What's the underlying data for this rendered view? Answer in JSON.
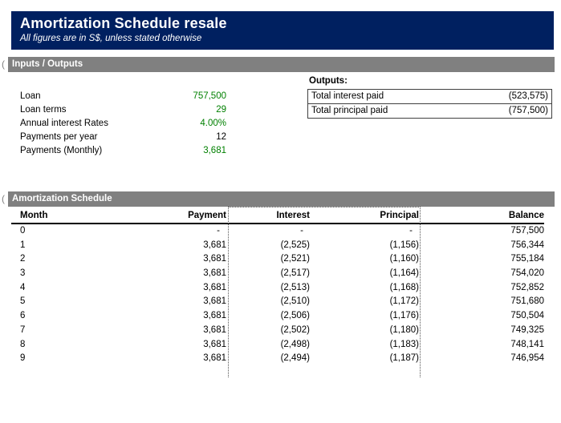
{
  "colors": {
    "navy": "#002060",
    "gray": "#808080",
    "green": "#008000"
  },
  "group_indicator": "(",
  "header": {
    "title": "Amortization Schedule resale",
    "subtitle": "All figures are in S$, unless stated otherwise"
  },
  "sections": {
    "inputs_outputs": {
      "label": "Inputs / Outputs"
    },
    "schedule": {
      "label": "Amortization Schedule"
    }
  },
  "inputs": [
    {
      "label": "Loan",
      "value": "757,500",
      "green": true
    },
    {
      "label": "Loan terms",
      "value": "29",
      "green": true
    },
    {
      "label": "Annual interest Rates",
      "value": "4.00%",
      "green": true
    },
    {
      "label": "Payments per year",
      "value": "12",
      "green": false
    },
    {
      "label": "Payments (Monthly)",
      "value": "3,681",
      "green": true
    }
  ],
  "outputs": {
    "label": "Outputs:",
    "rows": [
      {
        "label": "Total interest paid",
        "value": "(523,575)"
      },
      {
        "label": "Total principal paid",
        "value": "(757,500)"
      }
    ]
  },
  "schedule_table": {
    "columns": [
      "Month",
      "Payment",
      "Interest",
      "Principal",
      "Balance"
    ],
    "rows": [
      [
        "0",
        "-",
        "-",
        "-",
        "757,500"
      ],
      [
        "1",
        "3,681",
        "(2,525)",
        "(1,156)",
        "756,344"
      ],
      [
        "2",
        "3,681",
        "(2,521)",
        "(1,160)",
        "755,184"
      ],
      [
        "3",
        "3,681",
        "(2,517)",
        "(1,164)",
        "754,020"
      ],
      [
        "4",
        "3,681",
        "(2,513)",
        "(1,168)",
        "752,852"
      ],
      [
        "5",
        "3,681",
        "(2,510)",
        "(1,172)",
        "751,680"
      ],
      [
        "6",
        "3,681",
        "(2,506)",
        "(1,176)",
        "750,504"
      ],
      [
        "7",
        "3,681",
        "(2,502)",
        "(1,180)",
        "749,325"
      ],
      [
        "8",
        "3,681",
        "(2,498)",
        "(1,183)",
        "748,141"
      ],
      [
        "9",
        "3,681",
        "(2,494)",
        "(1,187)",
        "746,954"
      ]
    ]
  }
}
